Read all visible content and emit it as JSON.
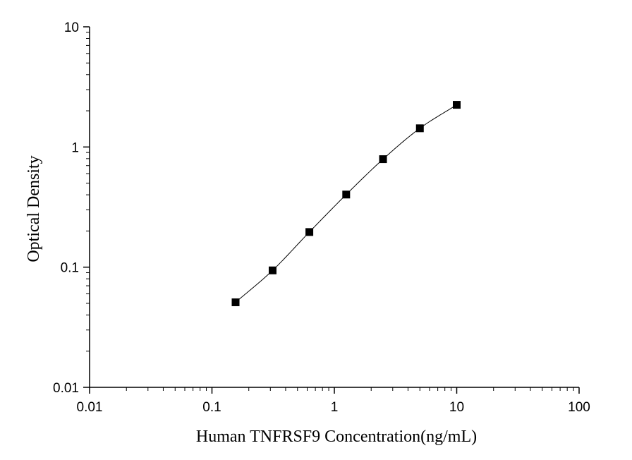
{
  "chart_data": {
    "type": "scatter",
    "xlabel": "Human TNFRSF9 Concentration(ng/mL)",
    "ylabel": "Optical Density",
    "x_scale": "log",
    "y_scale": "log",
    "xlim": [
      0.01,
      100
    ],
    "ylim": [
      0.01,
      10
    ],
    "x_ticks": [
      "0.01",
      "0.1",
      "1",
      "10",
      "100"
    ],
    "y_ticks": [
      "0.01",
      "0.1",
      "1",
      "10"
    ],
    "grid": false,
    "legend": "none",
    "marker": "filled-square",
    "fitted_curve": true,
    "series": [
      {
        "x": [
          0.156,
          0.313,
          0.625,
          1.25,
          2.5,
          5,
          10
        ],
        "y": [
          0.051,
          0.094,
          0.196,
          0.402,
          0.792,
          1.431,
          2.243
        ]
      }
    ],
    "colors": {
      "marker": "#000000",
      "curve": "#000000",
      "axis": "#000000"
    }
  }
}
